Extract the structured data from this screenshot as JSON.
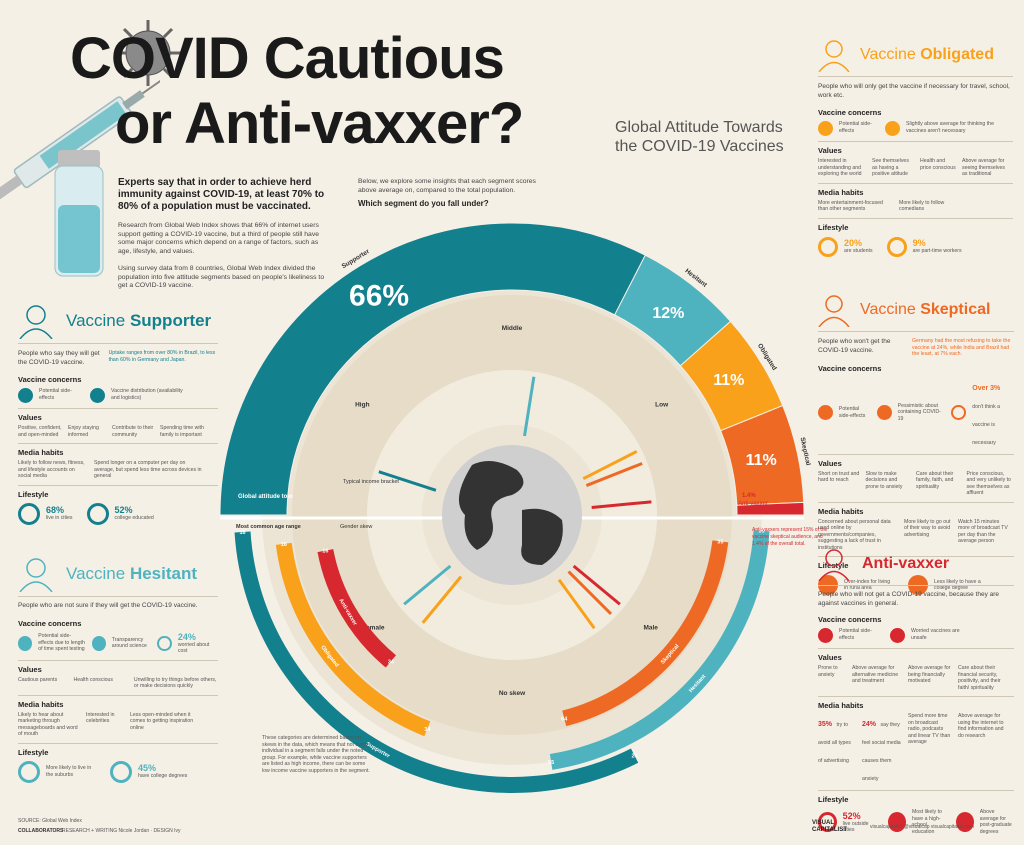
{
  "header": {
    "title_line1": "COVID Cautious",
    "title_line2": "or Anti-vaxxer?",
    "subtitle": "Global Attitude Towards the COVID-19 Vaccines"
  },
  "intro": {
    "lead": "Experts say that in order to achieve herd immunity against COVID-19, at least 70% to 80% of a population must be vaccinated.",
    "p1": "Research from Global Web Index shows that 66% of internet users support getting a COVID-19 vaccine, but a third of people still have some major concerns which depend on a range of factors, such as age, lifestyle, and values.",
    "p2": "Using survey data from 8 countries, Global Web Index divided the population into five attitude segments based on people's likeliness to get a COVID-19 vaccine.",
    "p3": "Below, we explore some insights that each segment scores above average on, compared to the total population.",
    "question": "Which segment do you fall under?"
  },
  "chart_data": {
    "type": "pie",
    "title": "Global attitude towards vaccines",
    "categories": [
      "Supporter",
      "Hesitant",
      "Obligated",
      "Skeptical",
      "Anti-vaxxer"
    ],
    "labels": [
      "66%",
      "12%",
      "11%",
      "11%",
      "1.4%"
    ],
    "values": [
      66,
      12,
      11,
      11,
      1.4
    ],
    "colors": [
      "#13808e",
      "#4fb3bf",
      "#f9a11b",
      "#ee6a24",
      "#d7282f"
    ],
    "income_labels": [
      "High",
      "Middle",
      "Low"
    ],
    "income_axis_label": "Typical income bracket",
    "gender_labels": [
      "Female",
      "No skew",
      "Male"
    ],
    "gender_axis_label": "Gender skew",
    "age_axis_label": "Most common age range",
    "age_ranges": [
      {
        "segment": "Supporter",
        "from": "16",
        "to": "24"
      },
      {
        "segment": "Hesitant",
        "from": "35",
        "to": "55"
      },
      {
        "segment": "Obligated",
        "from": "16",
        "to": "34"
      },
      {
        "segment": "Skeptical",
        "from": "35",
        "to": "64"
      },
      {
        "segment": "Anti-vaxxer",
        "from": "16",
        "to": "34"
      }
    ],
    "age_end_labels": [
      "16",
      "24",
      "34",
      "55",
      "64"
    ],
    "anti_note": "Anti-vaxxers represent 15% of the vaccine skeptical audience, and 1.4% of the overall total.",
    "footnote": "These categories are determined based on skews in the data, which means that not every individual in a segment falls under the noted group. For example, while vaccine supporters are listed as high income, there can be some low income vaccine supporters in the segment."
  },
  "supporter": {
    "title_pre": "Vaccine ",
    "title_bold": "Supporter",
    "desc": "People who say they will get the COVID-19 vaccine.",
    "note": "Uptake ranges from over 80% in Brazil, to less than 60% in Germany and Japan.",
    "concerns_h": "Vaccine concerns",
    "concerns": [
      "Potential side-effects",
      "Vaccine distribution (availability and logistics)"
    ],
    "values_h": "Values",
    "values": [
      "Positive, confident, and open-minded",
      "Enjoy staying informed",
      "Contribute to their community",
      "Spending time with family is important"
    ],
    "media_h": "Media habits",
    "media": [
      "Likely to follow news, fitness, and lifestyle accounts on social media",
      "Spend longer on a computer per day on average, but spend less time across devices in general"
    ],
    "life_h": "Lifestyle",
    "life": [
      {
        "pct": "68%",
        "text": "live in cities"
      },
      {
        "pct": "52%",
        "text": "college educated"
      }
    ]
  },
  "hesitant": {
    "title_pre": "Vaccine ",
    "title_bold": "Hesitant",
    "desc": "People who are not sure if they will get the COVID-19 vaccine.",
    "concerns_h": "Vaccine concerns",
    "concerns": [
      "Potential side-effects due to length of time spent testing",
      "Transparency around science"
    ],
    "concern_pct": "24%",
    "concern_pct_text": "worried about cost",
    "values_h": "Values",
    "values": [
      "Cautious parents",
      "Health conscious",
      "Unwilling to try things before others, or make decisions quickly"
    ],
    "media_h": "Media habits",
    "media": [
      "Likely to hear about marketing through messageboards and word of mouth",
      "Interested in celebrities",
      "Less open-minded when it comes to getting inspiration online"
    ],
    "life_h": "Lifestyle",
    "life": [
      {
        "pct": "",
        "text": "More likely to live in the suburbs"
      },
      {
        "pct": "45%",
        "text": "have college degrees"
      }
    ]
  },
  "obligated": {
    "title_pre": "Vaccine ",
    "title_bold": "Obligated",
    "desc": "People who will only get the vaccine if necessary for travel, school, work etc.",
    "concerns_h": "Vaccine concerns",
    "concerns": [
      "Potential side-effects",
      "Slightly above average for thinking the vaccines aren't necessary"
    ],
    "values_h": "Values",
    "values": [
      "Interested in understanding and exploring the world",
      "See themselves as having a positive attitude",
      "Health and price conscious",
      "Above average for seeing themselves as traditional"
    ],
    "media_h": "Media habits",
    "media": [
      "More entertainment-focused than other segments",
      "More likely to follow comedians"
    ],
    "life_h": "Lifestyle",
    "life": [
      {
        "pct": "20%",
        "text": "are students"
      },
      {
        "pct": "9%",
        "text": "are part-time workers"
      }
    ]
  },
  "skeptical": {
    "title_pre": "Vaccine ",
    "title_bold": "Skeptical",
    "desc": "People who won't get the COVID-19 vaccine.",
    "note": "Germany had the most refusing to take the vaccine at 24%, while India and Brazil had the least, at 7% each.",
    "concerns_h": "Vaccine concerns",
    "concerns": [
      "Potential side-effects",
      "Pessimistic about containing COVID-19"
    ],
    "concern_pct": "Over 3%",
    "concern_pct_text": "don't think a vaccine is necessary",
    "values_h": "Values",
    "values": [
      "Short on trust and hard to reach",
      "Slow to make decisions and prone to anxiety",
      "Care about their family, faith, and spirituality",
      "Price conscious, and very unlikely to see themselves as affluent"
    ],
    "media_h": "Media habits",
    "media": [
      "Concerned about personal data used online by governments/companies, suggesting a lack of trust in institutions",
      "More likely to go out of their way to avoid advertising",
      "Watch 15 minutes more of broadcast TV per day than the average person"
    ],
    "life_h": "Lifestyle",
    "life": [
      {
        "pct": "",
        "text": "Over-index for living in rural area"
      },
      {
        "pct": "",
        "text": "Less likely to have a college degree"
      }
    ]
  },
  "anti": {
    "title": "Anti-vaxxer",
    "desc": "People who will not get a COVID-19 vaccine, because they are against vaccines in general.",
    "concerns_h": "Vaccine concerns",
    "concerns": [
      "Potential side-effects",
      "Worried vaccines are unsafe"
    ],
    "values_h": "Values",
    "values": [
      "Prone to anxiety",
      "Above average for alternative medicine and treatment",
      "Above average for being financially motivated",
      "Care about their financial security, positivity, and their faith/ spirituality"
    ],
    "media_h": "Media habits",
    "media": [
      {
        "pct": "35%",
        "text": "try to avoid all types of advertising"
      },
      {
        "pct": "24%",
        "text": "say they feel social media causes them anxiety"
      },
      {
        "pct": "",
        "text": "Spend more time on broadcast radio, podcasts and linear TV than average"
      },
      {
        "pct": "",
        "text": "Above average for using the internet to find information and do research"
      }
    ],
    "life_h": "Lifestyle",
    "life": [
      {
        "pct": "52%",
        "text": "live outside cities"
      },
      {
        "pct": "",
        "text": "Most likely to have a high-school education"
      },
      {
        "pct": "",
        "text": "Above average for post-graduate degrees"
      }
    ]
  },
  "footer": {
    "source": "SOURCE: Global Web Index",
    "collab": "COLLABORATORS",
    "collab_names": "RESEARCH + WRITING  Nicole Jordan  ·  DESIGN  Ivy",
    "brand": "VISUAL CAPITALIST",
    "social": "visualcapitalist    @visualcap    visualcapitalist.com"
  },
  "colors": {
    "supporter": "#13808e",
    "hesitant": "#4fb3bf",
    "obligated": "#f9a11b",
    "skeptical": "#ee6a24",
    "anti": "#d7282f",
    "bg": "#f5f0e6"
  }
}
